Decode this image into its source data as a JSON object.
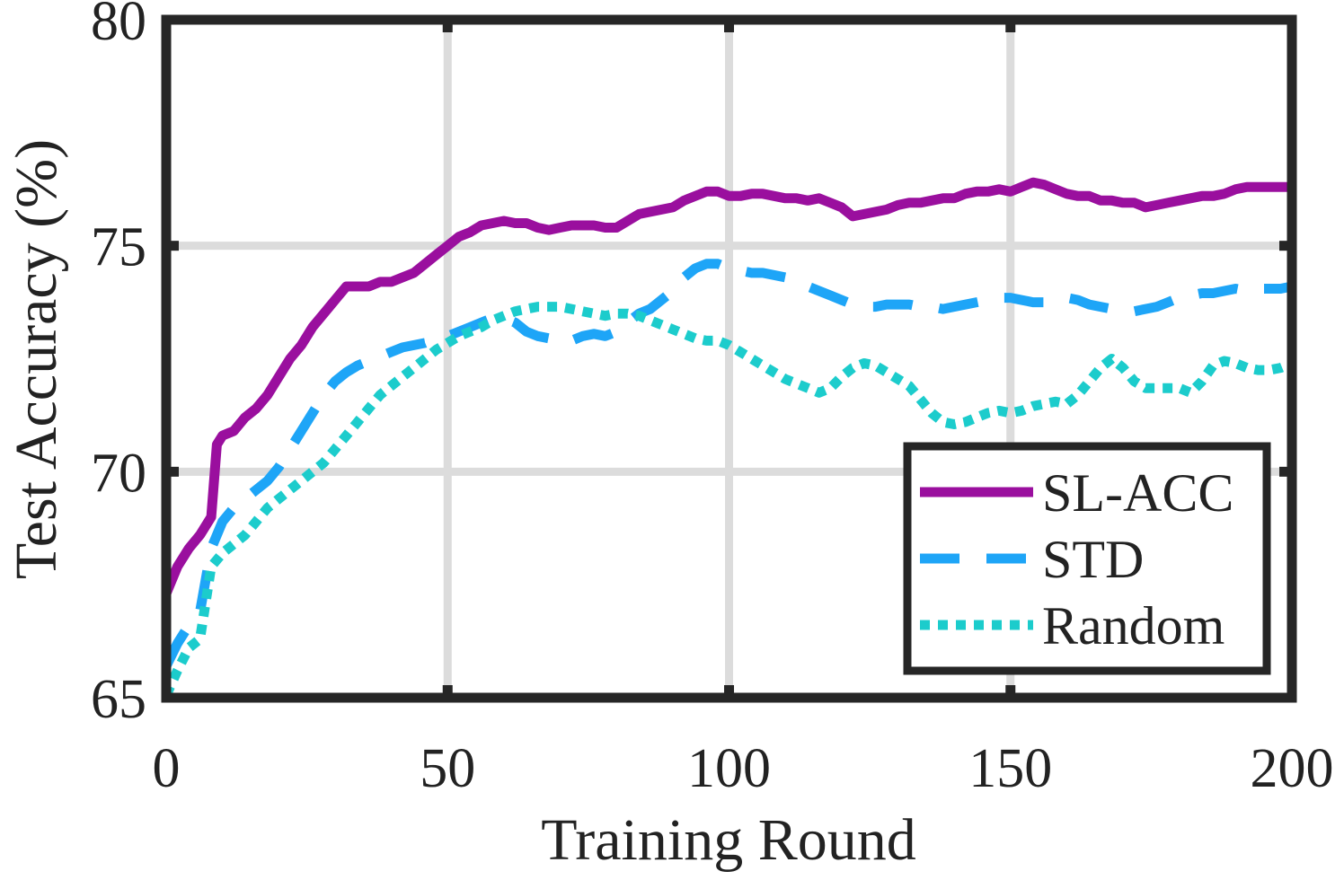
{
  "chart_data": {
    "type": "line",
    "title": "",
    "xlabel": "Training Round",
    "ylabel": "Test Accuracy (%)",
    "xlim": [
      0,
      200
    ],
    "ylim": [
      65,
      80
    ],
    "xticks": [
      0,
      50,
      100,
      150,
      200
    ],
    "yticks": [
      65,
      70,
      75,
      80
    ],
    "xtick_labels": [
      "0",
      "50",
      "100",
      "150",
      "200"
    ],
    "ytick_labels": [
      "65",
      "70",
      "75",
      "80"
    ],
    "grid": true,
    "legend_position": "bottom-right",
    "series": [
      {
        "name": "SL-ACC",
        "color": "#9a0f9e",
        "style": "solid",
        "x": [
          0,
          2,
          4,
          6,
          8,
          9,
          10,
          12,
          14,
          16,
          18,
          20,
          22,
          24,
          26,
          28,
          30,
          32,
          34,
          36,
          38,
          40,
          42,
          44,
          46,
          48,
          50,
          52,
          54,
          56,
          58,
          60,
          62,
          64,
          66,
          68,
          70,
          72,
          74,
          76,
          78,
          80,
          82,
          84,
          86,
          88,
          90,
          92,
          94,
          96,
          98,
          100,
          102,
          104,
          106,
          108,
          110,
          112,
          114,
          116,
          118,
          120,
          122,
          124,
          126,
          128,
          130,
          132,
          134,
          136,
          138,
          140,
          142,
          144,
          146,
          148,
          150,
          152,
          154,
          156,
          158,
          160,
          162,
          164,
          166,
          168,
          170,
          172,
          174,
          176,
          178,
          180,
          182,
          184,
          186,
          188,
          190,
          192,
          194,
          196,
          198,
          200
        ],
        "values": [
          67.3,
          67.9,
          68.3,
          68.6,
          69.0,
          70.6,
          70.8,
          70.9,
          71.2,
          71.4,
          71.7,
          72.1,
          72.5,
          72.8,
          73.2,
          73.5,
          73.8,
          74.1,
          74.1,
          74.1,
          74.2,
          74.2,
          74.3,
          74.4,
          74.6,
          74.8,
          75.0,
          75.2,
          75.3,
          75.45,
          75.5,
          75.55,
          75.5,
          75.5,
          75.4,
          75.35,
          75.4,
          75.45,
          75.45,
          75.45,
          75.4,
          75.4,
          75.55,
          75.7,
          75.75,
          75.8,
          75.85,
          76.0,
          76.1,
          76.2,
          76.2,
          76.1,
          76.1,
          76.15,
          76.15,
          76.1,
          76.05,
          76.05,
          76.0,
          76.05,
          75.95,
          75.85,
          75.65,
          75.7,
          75.75,
          75.8,
          75.9,
          75.95,
          75.95,
          76.0,
          76.05,
          76.05,
          76.15,
          76.2,
          76.2,
          76.25,
          76.2,
          76.3,
          76.4,
          76.35,
          76.25,
          76.15,
          76.1,
          76.1,
          76.0,
          76.0,
          75.95,
          75.95,
          75.85,
          75.9,
          75.95,
          76.0,
          76.05,
          76.1,
          76.1,
          76.15,
          76.25,
          76.3,
          76.3,
          76.3,
          76.3,
          76.3
        ]
      },
      {
        "name": "STD",
        "color": "#1ea5f7",
        "style": "dashed",
        "x": [
          0,
          2,
          4,
          6,
          8,
          10,
          12,
          14,
          16,
          18,
          20,
          22,
          24,
          26,
          28,
          30,
          32,
          34,
          36,
          38,
          40,
          42,
          44,
          46,
          48,
          50,
          52,
          54,
          56,
          58,
          60,
          62,
          64,
          66,
          68,
          70,
          72,
          74,
          76,
          78,
          80,
          82,
          84,
          86,
          88,
          90,
          92,
          94,
          96,
          98,
          100,
          102,
          104,
          106,
          108,
          110,
          112,
          114,
          116,
          118,
          120,
          122,
          124,
          126,
          128,
          130,
          132,
          134,
          136,
          138,
          140,
          142,
          144,
          146,
          148,
          150,
          152,
          154,
          156,
          158,
          160,
          162,
          164,
          166,
          168,
          170,
          172,
          174,
          176,
          178,
          180,
          182,
          184,
          186,
          188,
          190,
          192,
          194,
          196,
          198,
          200
        ],
        "values": [
          65.7,
          66.2,
          66.6,
          66.9,
          68.3,
          68.9,
          69.2,
          69.4,
          69.6,
          69.8,
          70.1,
          70.5,
          70.9,
          71.3,
          71.7,
          72.0,
          72.2,
          72.35,
          72.45,
          72.55,
          72.65,
          72.75,
          72.8,
          72.85,
          72.95,
          73.0,
          73.1,
          73.2,
          73.3,
          73.4,
          73.4,
          73.3,
          73.1,
          73.0,
          72.95,
          72.85,
          72.9,
          73.0,
          73.05,
          73.0,
          73.1,
          73.3,
          73.5,
          73.6,
          73.8,
          74.0,
          74.3,
          74.5,
          74.6,
          74.6,
          74.5,
          74.45,
          74.4,
          74.4,
          74.35,
          74.3,
          74.2,
          74.1,
          74.0,
          73.9,
          73.8,
          73.7,
          73.65,
          73.65,
          73.7,
          73.7,
          73.7,
          73.65,
          73.65,
          73.6,
          73.65,
          73.7,
          73.75,
          73.8,
          73.85,
          73.85,
          73.8,
          73.75,
          73.75,
          73.8,
          73.85,
          73.8,
          73.7,
          73.65,
          73.6,
          73.55,
          73.55,
          73.6,
          73.65,
          73.75,
          73.85,
          73.9,
          73.95,
          73.95,
          74.0,
          74.05,
          74.0,
          74.05,
          74.05,
          74.05,
          74.1
        ]
      },
      {
        "name": "Random",
        "color": "#1ccccc",
        "style": "dotted",
        "x": [
          0,
          2,
          4,
          6,
          8,
          10,
          12,
          14,
          16,
          18,
          20,
          22,
          24,
          26,
          28,
          30,
          32,
          34,
          36,
          38,
          40,
          42,
          44,
          46,
          48,
          50,
          52,
          54,
          56,
          58,
          60,
          62,
          64,
          66,
          68,
          70,
          72,
          74,
          76,
          78,
          80,
          82,
          84,
          86,
          88,
          90,
          92,
          94,
          96,
          98,
          100,
          102,
          104,
          106,
          108,
          110,
          112,
          114,
          116,
          118,
          120,
          122,
          124,
          126,
          128,
          130,
          132,
          134,
          136,
          138,
          140,
          142,
          144,
          146,
          148,
          150,
          152,
          154,
          156,
          158,
          160,
          162,
          164,
          166,
          168,
          170,
          172,
          174,
          176,
          178,
          180,
          182,
          184,
          186,
          188,
          190,
          192,
          194,
          196,
          198,
          200
        ],
        "values": [
          65.05,
          65.6,
          66.1,
          66.3,
          67.9,
          68.2,
          68.4,
          68.6,
          68.9,
          69.2,
          69.4,
          69.6,
          69.8,
          70.0,
          70.2,
          70.5,
          70.8,
          71.1,
          71.4,
          71.7,
          71.9,
          72.1,
          72.3,
          72.5,
          72.7,
          72.85,
          73.0,
          73.1,
          73.2,
          73.35,
          73.45,
          73.55,
          73.6,
          73.65,
          73.65,
          73.65,
          73.6,
          73.55,
          73.5,
          73.45,
          73.5,
          73.5,
          73.45,
          73.35,
          73.25,
          73.15,
          73.05,
          72.95,
          72.9,
          72.9,
          72.8,
          72.65,
          72.5,
          72.35,
          72.2,
          72.05,
          71.95,
          71.85,
          71.75,
          71.85,
          72.1,
          72.3,
          72.4,
          72.35,
          72.2,
          72.05,
          71.9,
          71.6,
          71.3,
          71.1,
          71.05,
          71.1,
          71.2,
          71.3,
          71.35,
          71.3,
          71.35,
          71.45,
          71.5,
          71.55,
          71.5,
          71.7,
          72.0,
          72.3,
          72.5,
          72.3,
          72.0,
          71.85,
          71.85,
          71.85,
          71.85,
          71.75,
          72.0,
          72.35,
          72.45,
          72.4,
          72.3,
          72.25,
          72.25,
          72.3,
          72.4
        ]
      }
    ]
  }
}
